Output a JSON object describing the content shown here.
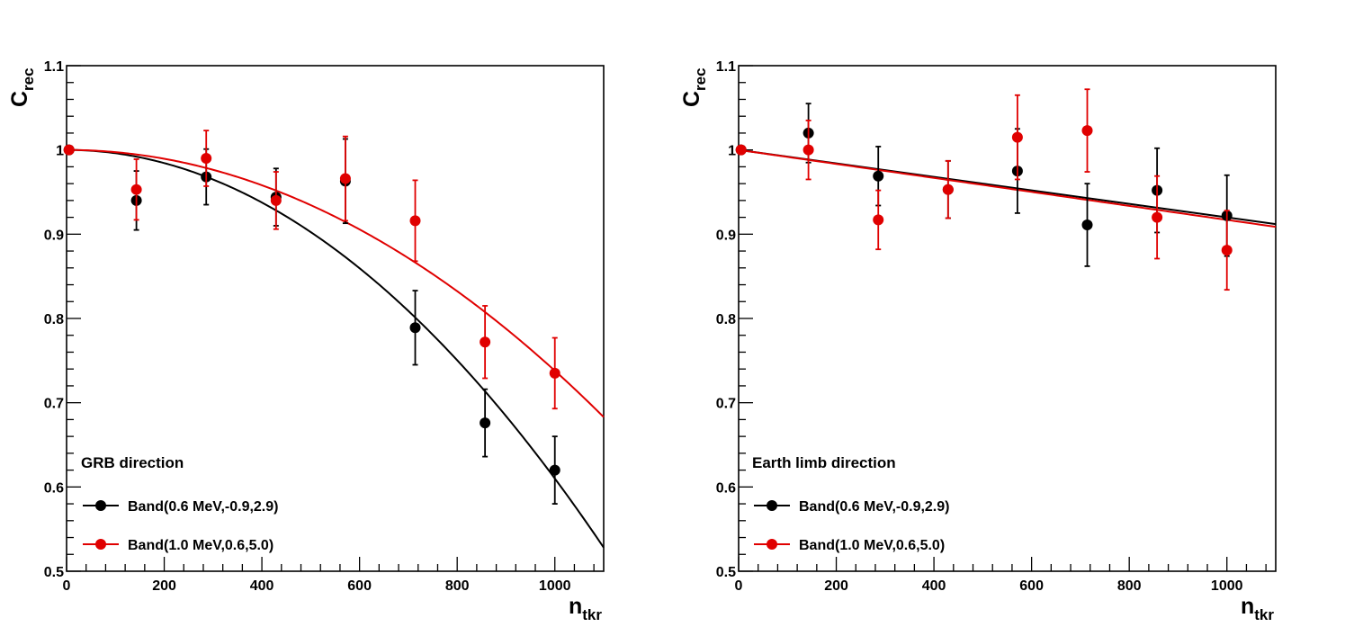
{
  "chart_data": [
    {
      "type": "scatter",
      "panel_label": "GRB direction",
      "xlabel": "n",
      "xlabel_sub": "tkr",
      "ylabel": "C",
      "ylabel_sub": "rec",
      "xlim": [
        0,
        1100
      ],
      "ylim": [
        0.5,
        1.1
      ],
      "x_ticks": [
        0,
        200,
        400,
        600,
        800,
        1000
      ],
      "y_ticks": [
        0.5,
        0.6,
        0.7,
        0.8,
        0.9,
        1,
        1.1
      ],
      "y_tick_labels": [
        "0.5",
        "0.6",
        "0.7",
        "0.8",
        "0.9",
        "1",
        "1.1"
      ],
      "legend": "bottom-left",
      "series": [
        {
          "name": "Band(0.6 MeV,-0.9,2.9)",
          "color": "#000000",
          "x": [
            5,
            143,
            286,
            429,
            571,
            714,
            857,
            1000
          ],
          "y": [
            1.0,
            0.94,
            0.968,
            0.944,
            0.963,
            0.789,
            0.676,
            0.62
          ],
          "err": [
            0.0,
            0.035,
            0.033,
            0.034,
            0.05,
            0.044,
            0.04,
            0.04
          ],
          "fit": {
            "form": "quadratic",
            "a": 1.0,
            "b": 0.0,
            "c": -3.9e-07
          }
        },
        {
          "name": "Band(1.0 MeV,0.6,5.0)",
          "color": "#e00000",
          "x": [
            5,
            143,
            286,
            429,
            571,
            714,
            857,
            1000
          ],
          "y": [
            1.0,
            0.953,
            0.99,
            0.94,
            0.966,
            0.916,
            0.772,
            0.735
          ],
          "err": [
            0.0,
            0.036,
            0.033,
            0.034,
            0.05,
            0.048,
            0.043,
            0.042
          ],
          "fit": {
            "form": "quadratic",
            "a": 1.0,
            "b": 0.0,
            "c": -2.62e-07
          }
        }
      ]
    },
    {
      "type": "scatter",
      "panel_label": "Earth limb direction",
      "xlabel": "n",
      "xlabel_sub": "tkr",
      "ylabel": "C",
      "ylabel_sub": "rec",
      "xlim": [
        0,
        1100
      ],
      "ylim": [
        0.5,
        1.1
      ],
      "x_ticks": [
        0,
        200,
        400,
        600,
        800,
        1000
      ],
      "y_ticks": [
        0.5,
        0.6,
        0.7,
        0.8,
        0.9,
        1,
        1.1
      ],
      "y_tick_labels": [
        "0.5",
        "0.6",
        "0.7",
        "0.8",
        "0.9",
        "1",
        "1.1"
      ],
      "legend": "bottom-left",
      "series": [
        {
          "name": "Band(0.6 MeV,-0.9,2.9)",
          "color": "#000000",
          "x": [
            5,
            143,
            286,
            429,
            571,
            714,
            857,
            1000
          ],
          "y": [
            1.0,
            1.02,
            0.969,
            0.953,
            0.975,
            0.911,
            0.952,
            0.922
          ],
          "err": [
            0.0,
            0.035,
            0.035,
            0.034,
            0.05,
            0.049,
            0.05,
            0.048
          ],
          "fit": {
            "form": "linear",
            "a": 1.0,
            "b": -8e-05
          }
        },
        {
          "name": "Band(1.0 MeV,0.6,5.0)",
          "color": "#e00000",
          "x": [
            5,
            143,
            286,
            429,
            571,
            714,
            857,
            1000
          ],
          "y": [
            1.0,
            1.0,
            0.917,
            0.953,
            1.015,
            1.023,
            0.92,
            0.881
          ],
          "err": [
            0.0,
            0.035,
            0.035,
            0.034,
            0.05,
            0.049,
            0.049,
            0.047
          ],
          "fit": {
            "form": "linear",
            "a": 1.0,
            "b": -8.3e-05
          }
        }
      ]
    }
  ]
}
